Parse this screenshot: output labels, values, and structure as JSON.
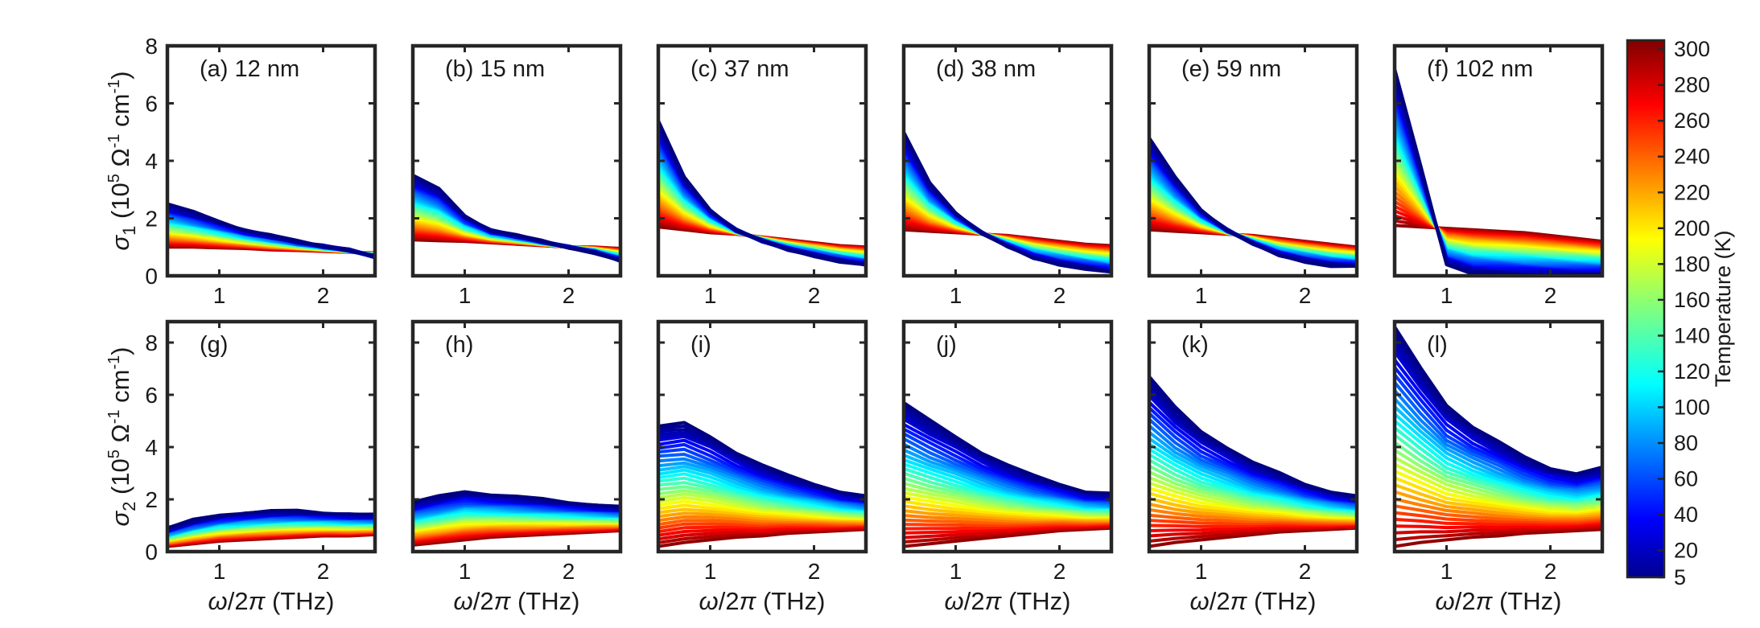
{
  "chart_data": {
    "type": "line",
    "description_free": true,
    "row_ylabels": [
      "σ₁ (10⁵ Ω⁻¹ cm⁻¹)",
      "σ₂ (10⁵ Ω⁻¹ cm⁻¹)"
    ],
    "row_ylabel_parts": [
      {
        "sym": "σ",
        "sub": "1",
        "unit_pre": " (10",
        "unit_exp": "5",
        "unit_mid": " Ω",
        "unit_exp2": "-1",
        "unit_post": " cm",
        "unit_exp3": "-1",
        "unit_end": ")"
      },
      {
        "sym": "σ",
        "sub": "2",
        "unit_pre": " (10",
        "unit_exp": "5",
        "unit_mid": " Ω",
        "unit_exp2": "-1",
        "unit_post": " cm",
        "unit_exp3": "-1",
        "unit_end": ")"
      }
    ],
    "xlabel": "ω/2π (THz)",
    "xlim": [
      0.5,
      2.5
    ],
    "xticks": [
      1,
      2
    ],
    "row_ylim": [
      [
        0,
        8
      ],
      [
        0,
        8.8
      ]
    ],
    "yticks": [
      0,
      2,
      4,
      6,
      8
    ],
    "colorbar": {
      "label": "Temperature (K)",
      "min": 5,
      "max": 305,
      "ticks": [
        5,
        20,
        40,
        60,
        80,
        100,
        120,
        140,
        160,
        180,
        200,
        220,
        240,
        260,
        280,
        300
      ]
    },
    "temperatures": [
      5,
      10,
      15,
      20,
      25,
      30,
      40,
      50,
      60,
      70,
      80,
      90,
      100,
      110,
      120,
      130,
      140,
      150,
      160,
      170,
      180,
      190,
      200,
      210,
      220,
      230,
      240,
      250,
      260,
      270,
      280,
      290,
      300
    ],
    "x": [
      0.5,
      0.75,
      1.0,
      1.25,
      1.5,
      1.75,
      2.0,
      2.25,
      2.5
    ],
    "panels": [
      {
        "label": "(a)",
        "thickness": "12 nm",
        "row": 0,
        "col": 0,
        "curves": {
          "cold": [
            2.5,
            2.2,
            1.9,
            1.6,
            1.4,
            1.2,
            1.05,
            0.9,
            0.65
          ],
          "hot": [
            1.0,
            1.0,
            0.97,
            0.95,
            0.9,
            0.88,
            0.85,
            0.82,
            0.8
          ]
        }
      },
      {
        "label": "(b)",
        "thickness": "15 nm",
        "row": 0,
        "col": 1,
        "curves": {
          "cold": [
            3.5,
            3.0,
            2.1,
            1.6,
            1.4,
            1.2,
            1.0,
            0.8,
            0.5
          ],
          "hot": [
            1.25,
            1.22,
            1.2,
            1.15,
            1.1,
            1.05,
            1.0,
            1.0,
            0.95
          ]
        }
      },
      {
        "label": "(c)",
        "thickness": "37 nm",
        "row": 0,
        "col": 2,
        "curves": {
          "cold": [
            5.4,
            3.4,
            2.3,
            1.6,
            1.2,
            0.9,
            0.7,
            0.5,
            0.35
          ],
          "hot": [
            1.7,
            1.6,
            1.5,
            1.45,
            1.35,
            1.25,
            1.15,
            1.05,
            1.0
          ]
        }
      },
      {
        "label": "(d)",
        "thickness": "38 nm",
        "row": 0,
        "col": 3,
        "curves": {
          "cold": [
            5.0,
            3.2,
            2.2,
            1.5,
            1.0,
            0.6,
            0.4,
            0.25,
            0.1
          ],
          "hot": [
            1.6,
            1.55,
            1.5,
            1.45,
            1.4,
            1.3,
            1.2,
            1.1,
            1.05
          ]
        }
      },
      {
        "label": "(e)",
        "thickness": "59 nm",
        "row": 0,
        "col": 4,
        "curves": {
          "cold": [
            4.8,
            3.4,
            2.3,
            1.6,
            1.1,
            0.7,
            0.5,
            0.35,
            0.3
          ],
          "hot": [
            1.6,
            1.55,
            1.5,
            1.45,
            1.4,
            1.3,
            1.2,
            1.1,
            1.0
          ]
        }
      },
      {
        "label": "(f)",
        "thickness": "102 nm",
        "row": 0,
        "col": 5,
        "curves": {
          "cold": [
            7.2,
            3.8,
            0.4,
            0.1,
            0.05,
            0.0,
            0.0,
            0.0,
            0.0
          ],
          "hot": [
            1.75,
            1.7,
            1.65,
            1.6,
            1.55,
            1.5,
            1.4,
            1.3,
            1.2
          ]
        }
      },
      {
        "label": "(g)",
        "thickness": "",
        "row": 1,
        "col": 0,
        "curves": {
          "cold": [
            0.9,
            1.2,
            1.4,
            1.5,
            1.55,
            1.55,
            1.5,
            1.45,
            1.4
          ],
          "hot": [
            0.2,
            0.3,
            0.4,
            0.45,
            0.5,
            0.55,
            0.6,
            0.6,
            0.65
          ]
        }
      },
      {
        "label": "(h)",
        "thickness": "",
        "row": 1,
        "col": 1,
        "curves": {
          "cold": [
            1.9,
            2.1,
            2.3,
            2.2,
            2.1,
            2.0,
            1.9,
            1.8,
            1.7
          ],
          "hot": [
            0.25,
            0.35,
            0.45,
            0.55,
            0.6,
            0.65,
            0.7,
            0.75,
            0.8
          ]
        }
      },
      {
        "label": "(i)",
        "thickness": "",
        "row": 1,
        "col": 2,
        "curves": {
          "cold": [
            4.8,
            4.9,
            4.4,
            3.8,
            3.3,
            2.9,
            2.6,
            2.3,
            2.1
          ],
          "hot": [
            0.2,
            0.35,
            0.45,
            0.55,
            0.6,
            0.7,
            0.75,
            0.8,
            0.85
          ]
        }
      },
      {
        "label": "(j)",
        "thickness": "",
        "row": 1,
        "col": 3,
        "curves": {
          "cold": [
            5.7,
            5.0,
            4.4,
            3.8,
            3.3,
            2.9,
            2.6,
            2.3,
            2.2
          ],
          "hot": [
            0.2,
            0.3,
            0.4,
            0.5,
            0.6,
            0.7,
            0.8,
            0.85,
            0.9
          ]
        }
      },
      {
        "label": "(k)",
        "thickness": "",
        "row": 1,
        "col": 4,
        "curves": {
          "cold": [
            6.7,
            5.5,
            4.6,
            4.0,
            3.4,
            3.0,
            2.6,
            2.3,
            2.1
          ],
          "hot": [
            0.2,
            0.35,
            0.45,
            0.55,
            0.65,
            0.75,
            0.8,
            0.85,
            0.9
          ]
        }
      },
      {
        "label": "(l)",
        "thickness": "",
        "row": 1,
        "col": 5,
        "curves": {
          "cold": [
            8.6,
            7.0,
            5.6,
            4.8,
            4.2,
            3.6,
            3.2,
            3.0,
            3.2
          ],
          "hot": [
            0.2,
            0.35,
            0.45,
            0.55,
            0.6,
            0.7,
            0.75,
            0.8,
            0.85
          ]
        }
      }
    ]
  }
}
